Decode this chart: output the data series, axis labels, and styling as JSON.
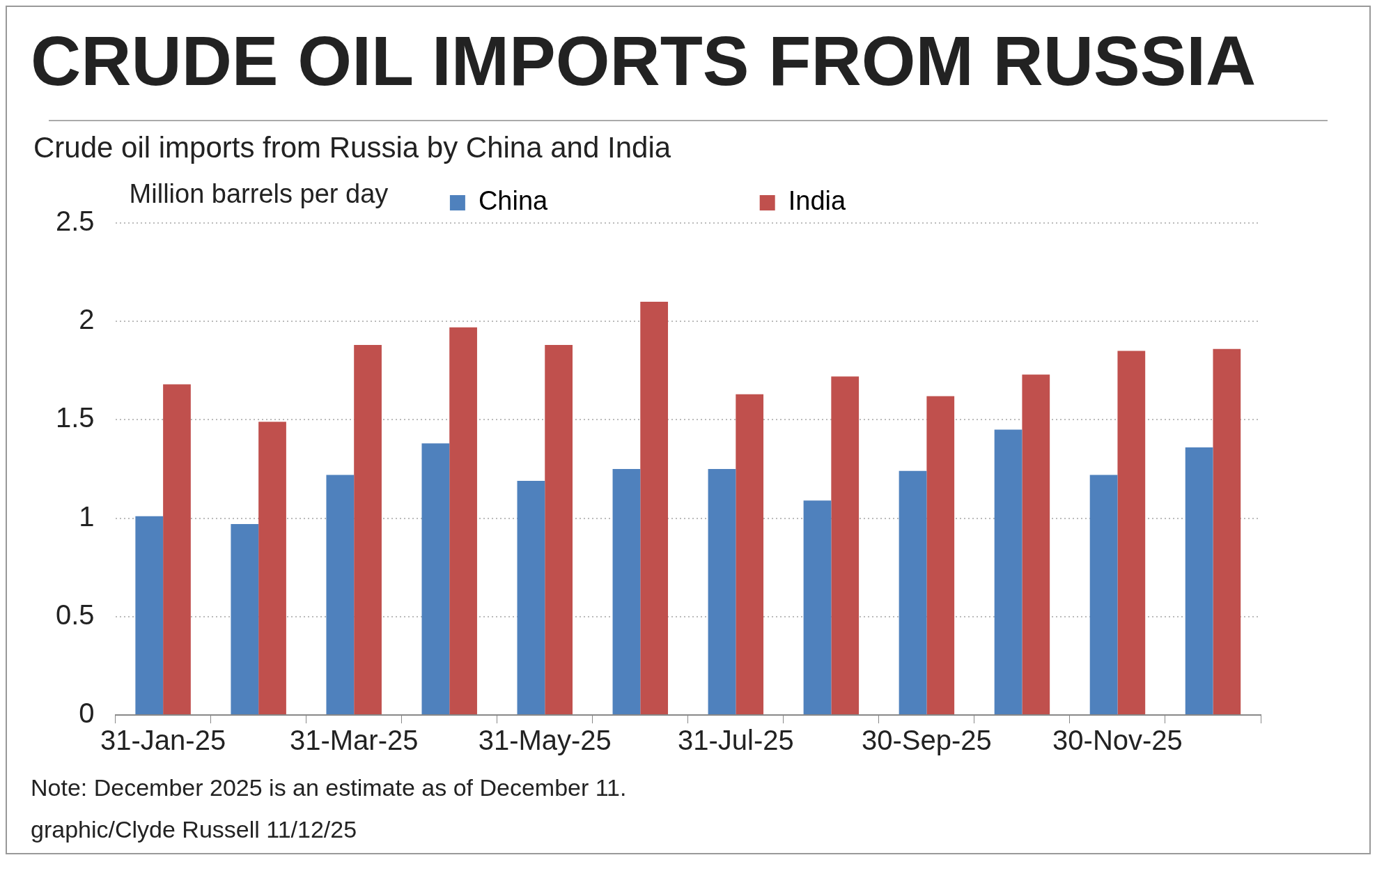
{
  "chart_data": {
    "type": "bar",
    "title": "CRUDE OIL IMPORTS FROM RUSSIA",
    "subtitle": "Crude oil imports from Russia by China and India",
    "ylabel": "Million barrels per day",
    "categories": [
      "31-Jan-25",
      null,
      "31-Mar-25",
      null,
      "31-May-25",
      null,
      "31-Jul-25",
      null,
      "30-Sep-25",
      null,
      "30-Nov-25",
      null
    ],
    "series": [
      {
        "name": "China",
        "color": "#4f81bd",
        "values": [
          1.01,
          0.97,
          1.22,
          1.38,
          1.19,
          1.25,
          1.25,
          1.09,
          1.24,
          1.45,
          1.22,
          1.36
        ]
      },
      {
        "name": "India",
        "color": "#c0504d",
        "values": [
          1.68,
          1.49,
          1.88,
          1.97,
          1.88,
          2.1,
          1.63,
          1.72,
          1.62,
          1.73,
          1.85,
          1.86
        ]
      }
    ],
    "ylim": [
      0,
      2.5
    ],
    "yticks": [
      0,
      0.5,
      1,
      1.5,
      2,
      2.5
    ],
    "grid": "y",
    "legend": "top",
    "annotations": [
      "Note: December 2025 is an estimate as of December 11.",
      "graphic/Clyde Russell 11/12/25"
    ]
  }
}
